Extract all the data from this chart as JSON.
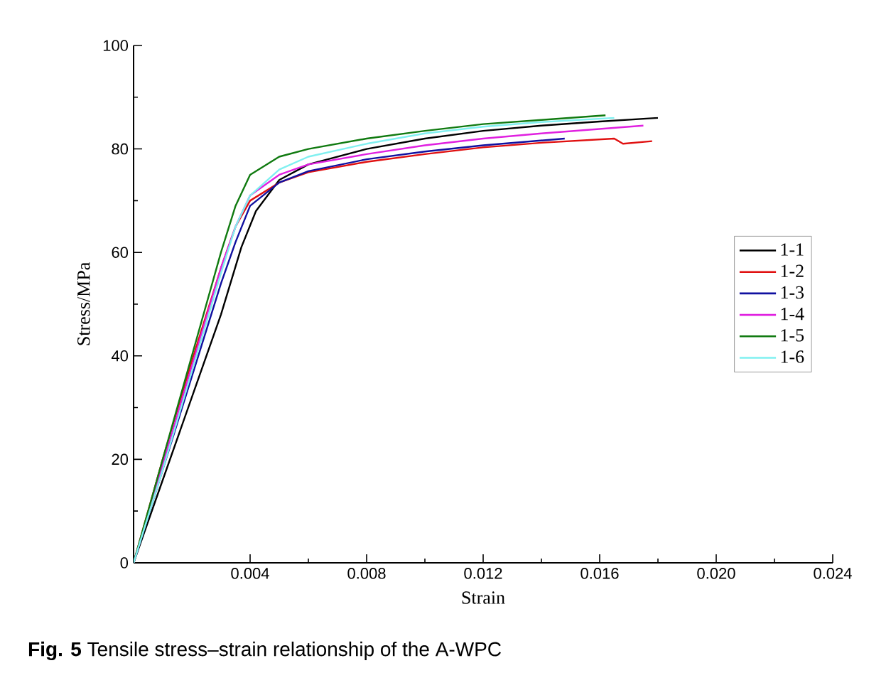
{
  "chart_data": {
    "type": "line",
    "xlabel": "Strain",
    "ylabel": "Stress/MPa",
    "xlim": [
      0,
      0.024
    ],
    "ylim": [
      0,
      100
    ],
    "xticks": [
      0.004,
      0.008,
      0.012,
      0.016,
      {
        "value": 0.02,
        "label": "0.020"
      },
      0.024
    ],
    "yticks": [
      0,
      20,
      40,
      60,
      80,
      100
    ],
    "legend": "right",
    "grid": false,
    "marker": "none",
    "line_style": "solid",
    "annotations": [
      "**Fig. 5** Tensile stress–strain relationship of the A-WPC"
    ],
    "series": [
      {
        "name": "1-1",
        "color": "#000000",
        "x": [
          0,
          0.001,
          0.002,
          0.003,
          0.0037,
          0.0042,
          0.005,
          0.006,
          0.008,
          0.01,
          0.012,
          0.014,
          0.016,
          0.018
        ],
        "values": [
          0,
          16,
          32,
          48,
          61,
          68,
          74,
          77,
          80,
          82,
          83.5,
          84.5,
          85.3,
          86
        ]
      },
      {
        "name": "1-2",
        "color": "#e01010",
        "x": [
          0,
          0.001,
          0.002,
          0.003,
          0.0035,
          0.004,
          0.005,
          0.006,
          0.008,
          0.01,
          0.012,
          0.014,
          0.0165,
          0.0168,
          0.0178
        ],
        "values": [
          0,
          20,
          39,
          57,
          65,
          70,
          73.5,
          75.5,
          77.5,
          79,
          80.3,
          81.2,
          82,
          81,
          81.5
        ]
      },
      {
        "name": "1-3",
        "color": "#1010a0",
        "x": [
          0,
          0.001,
          0.002,
          0.003,
          0.0035,
          0.004,
          0.005,
          0.006,
          0.008,
          0.01,
          0.012,
          0.0148
        ],
        "values": [
          0,
          18,
          36,
          54,
          62,
          69,
          73.5,
          75.7,
          78,
          79.5,
          80.7,
          82
        ]
      },
      {
        "name": "1-4",
        "color": "#e020e0",
        "x": [
          0,
          0.001,
          0.002,
          0.003,
          0.0035,
          0.004,
          0.005,
          0.006,
          0.008,
          0.01,
          0.012,
          0.014,
          0.0175
        ],
        "values": [
          0,
          19,
          38,
          57,
          65,
          71,
          75,
          77,
          79,
          80.7,
          82,
          83,
          84.5
        ]
      },
      {
        "name": "1-5",
        "color": "#107a10",
        "x": [
          0,
          0.001,
          0.002,
          0.003,
          0.0035,
          0.004,
          0.005,
          0.006,
          0.008,
          0.01,
          0.012,
          0.014,
          0.0162
        ],
        "values": [
          0,
          20,
          40,
          60,
          69,
          75,
          78.5,
          80,
          82,
          83.5,
          84.8,
          85.6,
          86.5
        ]
      },
      {
        "name": "1-6",
        "color": "#80f0f0",
        "x": [
          0,
          0.001,
          0.002,
          0.003,
          0.0035,
          0.004,
          0.005,
          0.006,
          0.008,
          0.01,
          0.012,
          0.014,
          0.0165
        ],
        "values": [
          0,
          18,
          37,
          56,
          65,
          71,
          76,
          78.5,
          81,
          83,
          84.3,
          85.2,
          86
        ]
      }
    ]
  }
}
